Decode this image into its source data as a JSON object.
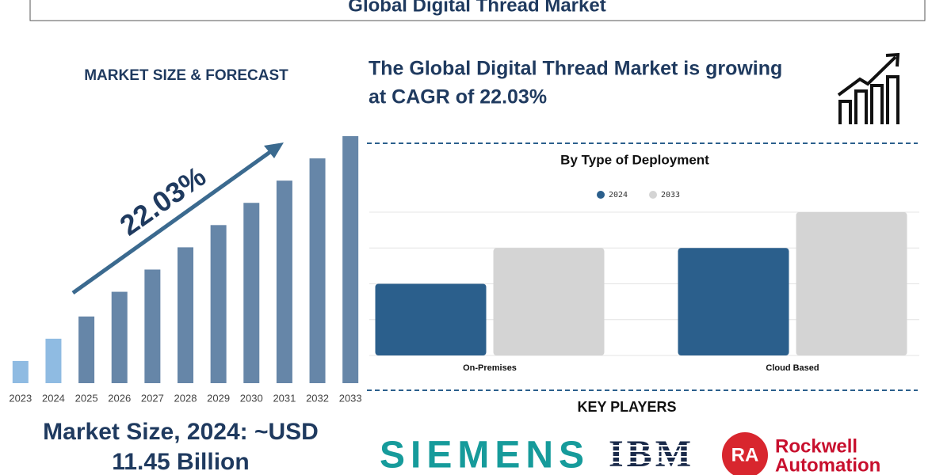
{
  "header": {
    "title": "Global Digital Thread Market"
  },
  "forecast_heading": "MARKET SIZE & FORECAST",
  "headline": [
    "The Global Digital Thread Market is growing",
    "at CAGR of 22.03%"
  ],
  "market_size": [
    "Market Size, 2024: ~USD",
    "11.45 Billion"
  ],
  "chart_data": [
    {
      "type": "bar",
      "categories": [
        "2023",
        "2024",
        "2025",
        "2026",
        "2027",
        "2028",
        "2029",
        "2030",
        "2031",
        "2032",
        "2033"
      ],
      "values": [
        9,
        18,
        27,
        37,
        46,
        55,
        64,
        73,
        82,
        91,
        100
      ],
      "colors": [
        "#8fbbe2",
        "#8fbbe2",
        "#6686a8",
        "#6686a8",
        "#6686a8",
        "#6686a8",
        "#6686a8",
        "#6686a8",
        "#6686a8",
        "#6686a8",
        "#6686a8"
      ],
      "ylim": [
        0,
        100
      ],
      "annotation": "22.03%"
    },
    {
      "type": "bar",
      "title": "By Type of Deployment",
      "categories": [
        "On-Premises",
        "Cloud Based"
      ],
      "series": [
        {
          "name": "2024",
          "color": "#2b5f8c",
          "values": [
            2,
            3
          ]
        },
        {
          "name": "2033",
          "color": "#d4d4d4",
          "values": [
            3,
            4
          ]
        }
      ],
      "ylim": [
        0,
        4
      ],
      "yticks": [
        0,
        1,
        2,
        3,
        4
      ],
      "grid": true
    }
  ],
  "key_players": {
    "heading": "KEY PLAYERS",
    "siemens": "SIEMENS",
    "ibm": "IBM",
    "rockwell": {
      "badge": "RA",
      "name": [
        "Rockwell",
        "Automation"
      ]
    }
  }
}
